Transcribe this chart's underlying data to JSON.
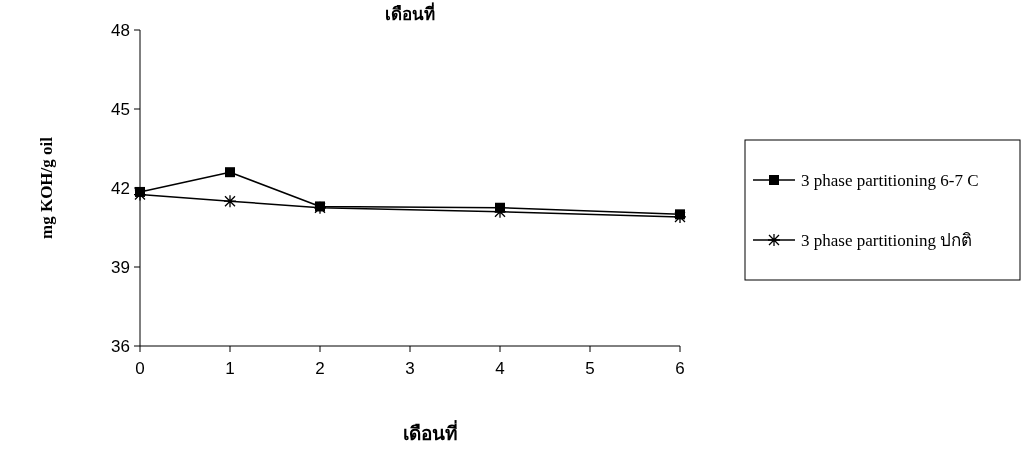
{
  "chart_data": {
    "type": "line",
    "title": "เดือนที่",
    "xlabel": "เดือนที่",
    "ylabel": "mg KOH/g oil",
    "x": [
      0,
      1,
      2,
      4,
      6
    ],
    "series": [
      {
        "name": "3 phase partitioning 6-7 C",
        "color": "#000000",
        "marker": "square",
        "values": [
          41.85,
          42.6,
          41.3,
          41.25,
          41.0
        ]
      },
      {
        "name": "3 phase partitioning ปกติ",
        "color": "#000000",
        "marker": "cross",
        "values": [
          41.75,
          41.5,
          41.25,
          41.1,
          40.9
        ]
      }
    ],
    "xlim": [
      0,
      6
    ],
    "xticks": [
      0,
      1,
      2,
      3,
      4,
      5,
      6
    ],
    "ylim": [
      36,
      48
    ],
    "yticks": [
      36,
      39,
      42,
      45,
      48
    ],
    "grid": false,
    "legend": "right"
  }
}
